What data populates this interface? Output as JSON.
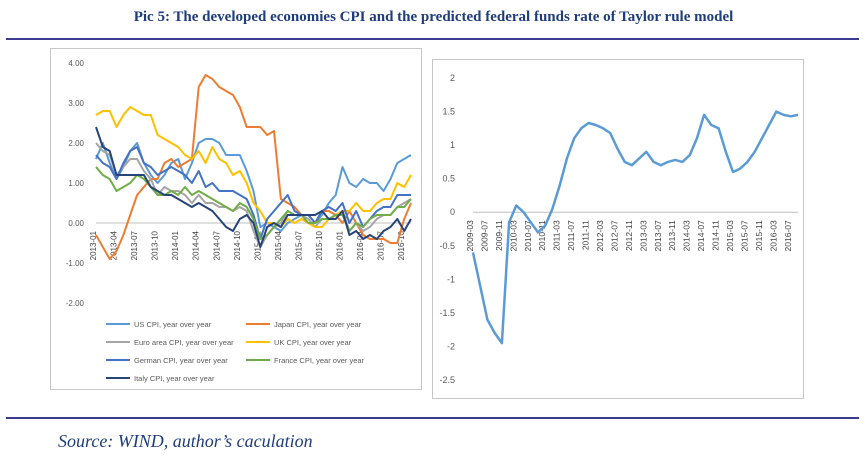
{
  "header": {
    "title": "Pic 5:   The developed economies CPI and the predicted federal funds rate of Taylor rule model"
  },
  "footer": {
    "source": "Source: WIND, author’s caculation"
  },
  "colors": {
    "title": "#1f3d7a",
    "rule": "#3b3b8f"
  },
  "chart_data": [
    {
      "type": "line",
      "title": "",
      "xlabel": "",
      "ylabel": "",
      "ylim": [
        -2,
        4
      ],
      "y_ticks": [
        "4.00",
        "3.00",
        "2.00",
        "1.00",
        "0.00",
        "-1.00",
        "-2.00"
      ],
      "y_tick_values": [
        4,
        3,
        2,
        1,
        0,
        -1,
        -2
      ],
      "x_ticks": [
        "2013-01",
        "2013-04",
        "2013-07",
        "2013-10",
        "2014-01",
        "2014-04",
        "2014-07",
        "2014-10",
        "2015-01",
        "2015-04",
        "2015-07",
        "2015-10",
        "2016-01",
        "2016-04",
        "2016-07",
        "2016-10"
      ],
      "x": [
        "2013-01",
        "2013-02",
        "2013-03",
        "2013-04",
        "2013-05",
        "2013-06",
        "2013-07",
        "2013-08",
        "2013-09",
        "2013-10",
        "2013-11",
        "2013-12",
        "2014-01",
        "2014-02",
        "2014-03",
        "2014-04",
        "2014-05",
        "2014-06",
        "2014-07",
        "2014-08",
        "2014-09",
        "2014-10",
        "2014-11",
        "2014-12",
        "2015-01",
        "2015-02",
        "2015-03",
        "2015-04",
        "2015-05",
        "2015-06",
        "2015-07",
        "2015-08",
        "2015-09",
        "2015-10",
        "2015-11",
        "2015-12",
        "2016-01",
        "2016-02",
        "2016-03",
        "2016-04",
        "2016-05",
        "2016-06",
        "2016-07",
        "2016-08",
        "2016-09",
        "2016-10",
        "2016-11"
      ],
      "grid": false,
      "legend_position": "bottom",
      "series": [
        {
          "name": "US CPI, year over year",
          "color": "#5b9bd5",
          "values": [
            1.6,
            2.0,
            1.5,
            1.1,
            1.4,
            1.8,
            2.0,
            1.5,
            1.2,
            1.0,
            1.2,
            1.5,
            1.6,
            1.1,
            1.5,
            2.0,
            2.1,
            2.1,
            2.0,
            1.7,
            1.7,
            1.7,
            1.3,
            0.8,
            -0.1,
            0.0,
            -0.1,
            -0.2,
            0.0,
            0.1,
            0.2,
            0.2,
            0.0,
            0.2,
            0.5,
            0.7,
            1.4,
            1.0,
            0.9,
            1.1,
            1.0,
            1.0,
            0.8,
            1.1,
            1.5,
            1.6,
            1.7
          ]
        },
        {
          "name": "Japan CPI, year over year",
          "color": "#ed7d31",
          "values": [
            -0.3,
            -0.6,
            -0.9,
            -0.7,
            -0.3,
            0.2,
            0.7,
            0.9,
            1.1,
            1.1,
            1.5,
            1.6,
            1.4,
            1.5,
            1.6,
            3.4,
            3.7,
            3.6,
            3.4,
            3.3,
            3.2,
            2.9,
            2.4,
            2.4,
            2.4,
            2.2,
            2.3,
            0.6,
            0.5,
            0.4,
            0.2,
            0.2,
            0.0,
            0.3,
            0.3,
            0.2,
            0.0,
            0.3,
            0.0,
            -0.3,
            -0.4,
            -0.4,
            -0.4,
            -0.5,
            -0.5,
            0.1,
            0.5
          ]
        },
        {
          "name": "Euro area CPI, year over year",
          "color": "#a5a5a5",
          "values": [
            2.0,
            1.8,
            1.7,
            1.2,
            1.4,
            1.6,
            1.6,
            1.3,
            1.1,
            0.7,
            0.9,
            0.8,
            0.8,
            0.7,
            0.5,
            0.7,
            0.5,
            0.5,
            0.4,
            0.4,
            0.3,
            0.4,
            0.3,
            -0.2,
            -0.6,
            -0.3,
            -0.1,
            0.0,
            0.3,
            0.2,
            0.2,
            0.1,
            -0.1,
            0.1,
            0.1,
            0.2,
            0.3,
            -0.2,
            0.0,
            -0.2,
            -0.1,
            0.1,
            0.2,
            0.2,
            0.4,
            0.5,
            0.6
          ]
        },
        {
          "name": "UK CPI, year over year",
          "color": "#ffc000",
          "values": [
            2.7,
            2.8,
            2.8,
            2.4,
            2.7,
            2.9,
            2.8,
            2.7,
            2.7,
            2.2,
            2.1,
            2.0,
            1.9,
            1.7,
            1.6,
            1.8,
            1.5,
            1.9,
            1.6,
            1.5,
            1.2,
            1.3,
            1.0,
            0.5,
            0.3,
            0.0,
            0.0,
            -0.1,
            0.1,
            0.0,
            0.1,
            0.0,
            -0.1,
            -0.1,
            0.1,
            0.2,
            0.3,
            0.3,
            0.5,
            0.3,
            0.3,
            0.5,
            0.6,
            0.6,
            1.0,
            0.9,
            1.2
          ]
        },
        {
          "name": "German CPI, year over year",
          "color": "#4472c4",
          "values": [
            1.7,
            1.5,
            1.4,
            1.1,
            1.5,
            1.8,
            1.9,
            1.5,
            1.4,
            1.2,
            1.3,
            1.4,
            1.3,
            1.2,
            1.0,
            1.3,
            0.9,
            1.0,
            0.8,
            0.8,
            0.8,
            0.7,
            0.6,
            0.2,
            -0.4,
            0.1,
            0.3,
            0.5,
            0.7,
            0.3,
            0.2,
            0.2,
            0.0,
            0.3,
            0.4,
            0.3,
            0.5,
            0.0,
            0.3,
            -0.1,
            0.1,
            0.3,
            0.4,
            0.4,
            0.7,
            0.7,
            0.7
          ]
        },
        {
          "name": "France CPI, year over year",
          "color": "#70ad47",
          "values": [
            1.4,
            1.2,
            1.1,
            0.8,
            0.9,
            1.0,
            1.2,
            1.1,
            0.9,
            0.7,
            0.7,
            0.8,
            0.7,
            0.9,
            0.7,
            0.8,
            0.7,
            0.6,
            0.5,
            0.4,
            0.3,
            0.5,
            0.4,
            0.1,
            -0.4,
            -0.3,
            -0.1,
            0.1,
            0.3,
            0.2,
            0.2,
            0.0,
            0.0,
            0.1,
            0.1,
            0.2,
            0.2,
            -0.2,
            0.0,
            -0.1,
            0.1,
            0.2,
            0.2,
            0.2,
            0.4,
            0.4,
            0.6
          ]
        },
        {
          "name": "Italy CPI, year over year",
          "color": "#264478",
          "values": [
            2.4,
            1.9,
            1.8,
            1.2,
            1.2,
            1.2,
            1.2,
            1.2,
            0.9,
            0.8,
            0.7,
            0.7,
            0.6,
            0.5,
            0.4,
            0.5,
            0.4,
            0.3,
            0.1,
            -0.1,
            -0.2,
            0.1,
            0.2,
            0.0,
            -0.6,
            -0.1,
            0.0,
            -0.1,
            0.2,
            0.2,
            0.2,
            0.2,
            0.2,
            0.3,
            0.1,
            0.1,
            0.3,
            -0.3,
            -0.2,
            -0.4,
            -0.3,
            -0.4,
            -0.2,
            -0.1,
            0.1,
            -0.2,
            0.1
          ]
        }
      ]
    },
    {
      "type": "line",
      "title": "",
      "xlabel": "",
      "ylabel": "",
      "ylim": [
        -2.5,
        2
      ],
      "y_ticks": [
        "2",
        "1.5",
        "1",
        "0.5",
        "0",
        "-0.5",
        "-1",
        "-1.5",
        "-2",
        "-2.5"
      ],
      "y_tick_values": [
        2,
        1.5,
        1,
        0.5,
        0,
        -0.5,
        -1,
        -1.5,
        -2,
        -2.5
      ],
      "x_ticks": [
        "2009-03",
        "2009-07",
        "2009-11",
        "2010-03",
        "2010-07",
        "2010-11",
        "2011-03",
        "2011-07",
        "2011-11",
        "2012-03",
        "2012-07",
        "2012-11",
        "2013-03",
        "2013-07",
        "2013-11",
        "2014-03",
        "2014-07",
        "2014-11",
        "2015-03",
        "2015-07",
        "2015-11",
        "2016-03",
        "2016-07"
      ],
      "x": [
        "2009-03",
        "2009-05",
        "2009-07",
        "2009-09",
        "2009-11",
        "2010-01",
        "2010-03",
        "2010-05",
        "2010-07",
        "2010-09",
        "2010-11",
        "2011-01",
        "2011-03",
        "2011-05",
        "2011-07",
        "2011-09",
        "2011-11",
        "2012-01",
        "2012-03",
        "2012-05",
        "2012-07",
        "2012-09",
        "2012-11",
        "2013-01",
        "2013-03",
        "2013-05",
        "2013-07",
        "2013-09",
        "2013-11",
        "2014-01",
        "2014-03",
        "2014-05",
        "2014-07",
        "2014-09",
        "2014-11",
        "2015-01",
        "2015-03",
        "2015-05",
        "2015-07",
        "2015-09",
        "2015-11",
        "2016-01",
        "2016-03",
        "2016-05",
        "2016-07",
        "2016-09"
      ],
      "grid": false,
      "series": [
        {
          "color": "#5b9bd5",
          "values": [
            -0.6,
            -1.1,
            -1.6,
            -1.8,
            -1.95,
            -0.15,
            0.1,
            0.0,
            -0.15,
            -0.3,
            -0.2,
            0.05,
            0.4,
            0.8,
            1.1,
            1.25,
            1.33,
            1.3,
            1.25,
            1.18,
            0.95,
            0.75,
            0.7,
            0.8,
            0.9,
            0.75,
            0.7,
            0.75,
            0.78,
            0.75,
            0.85,
            1.1,
            1.45,
            1.3,
            1.25,
            0.9,
            0.6,
            0.65,
            0.75,
            0.9,
            1.1,
            1.3,
            1.5,
            1.45,
            1.43,
            1.45
          ]
        }
      ]
    }
  ]
}
